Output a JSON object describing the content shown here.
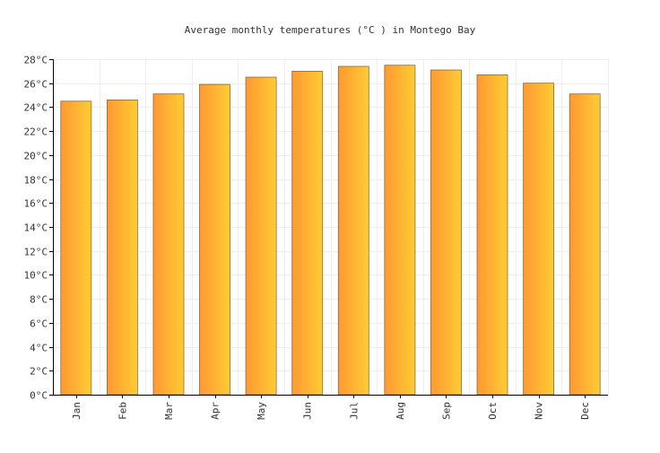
{
  "chart_data": {
    "type": "bar",
    "title": "Average monthly temperatures (°C ) in Montego Bay",
    "xlabel": "",
    "ylabel": "",
    "categories": [
      "Jan",
      "Feb",
      "Mar",
      "Apr",
      "May",
      "Jun",
      "Jul",
      "Aug",
      "Sep",
      "Oct",
      "Nov",
      "Dec"
    ],
    "values": [
      24.5,
      24.6,
      25.1,
      25.9,
      26.5,
      27.0,
      27.4,
      27.5,
      27.1,
      26.7,
      26.0,
      25.1
    ],
    "ylim": [
      0,
      28
    ],
    "ytick_step": 2,
    "ytick_suffix": "°C",
    "grid": true,
    "legend": "none",
    "colors": {
      "bar_left": "#ff9933",
      "bar_right": "#ffcc33",
      "bar_stroke": "#8a6a3a",
      "grid": "#eeeeee",
      "axis": "#000000"
    }
  }
}
